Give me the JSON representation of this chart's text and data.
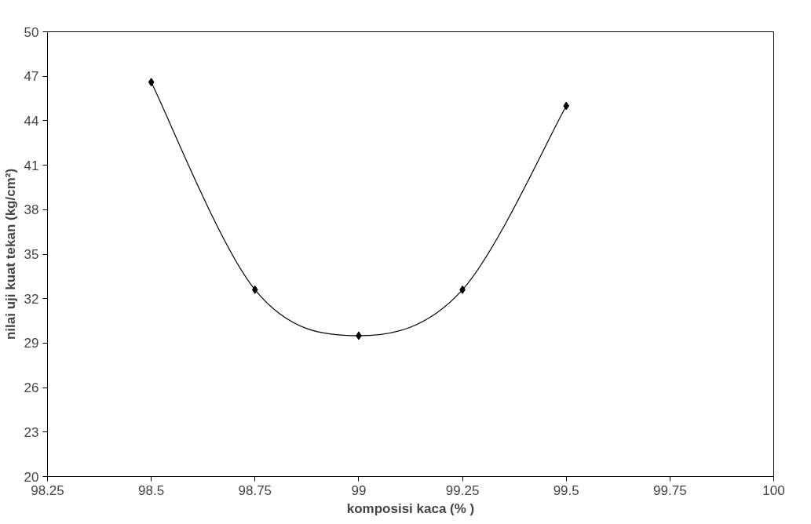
{
  "chart_data": {
    "type": "line",
    "xlabel": "komposisi kaca (% )",
    "ylabel": "nilai uji kuat tekan (kg/cm²)",
    "x": [
      98.5,
      98.75,
      99,
      99.25,
      99.5
    ],
    "series": [
      {
        "color": "#000000",
        "values": [
          46.6,
          32.6,
          29.5,
          32.6,
          45.0
        ]
      }
    ],
    "xlim": [
      98.25,
      100
    ],
    "xticks": [
      98.25,
      98.5,
      98.75,
      99,
      99.25,
      99.5,
      99.75,
      100
    ],
    "ylim": [
      20,
      50
    ],
    "yticks": [
      20,
      23,
      26,
      29,
      32,
      35,
      38,
      41,
      44,
      47,
      50
    ],
    "grid": false,
    "marker": "diamond",
    "line_style": "solid"
  }
}
